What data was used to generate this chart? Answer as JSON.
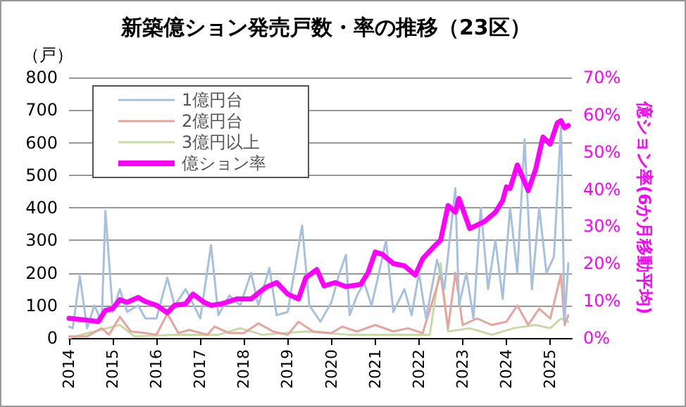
{
  "chart_data": {
    "type": "line",
    "title": "新築億ション発売戸数・率の推移（23区）",
    "ylabel": "（戸）",
    "y2label": "億ション率(6か月移動平均)",
    "xlim": [
      "2014-01",
      "2025-07"
    ],
    "xticks": [
      "2014",
      "2015",
      "2016",
      "2017",
      "2018",
      "2019",
      "2020",
      "2021",
      "2022",
      "2023",
      "2024",
      "2025"
    ],
    "ylim": [
      0,
      800
    ],
    "yticks": [
      0,
      100,
      200,
      300,
      400,
      500,
      600,
      700,
      800
    ],
    "y2lim": [
      0,
      70
    ],
    "y2ticks": [
      {
        "value": 0,
        "label": "0%"
      },
      {
        "value": 10,
        "label": "10%"
      },
      {
        "value": 20,
        "label": "20%"
      },
      {
        "value": 30,
        "label": "30%"
      },
      {
        "value": 40,
        "label": "40%"
      },
      {
        "value": 50,
        "label": "50%"
      },
      {
        "value": 60,
        "label": "60%"
      },
      {
        "value": 70,
        "label": "70%"
      }
    ],
    "grid": "y",
    "legend": "top left",
    "marker": "none",
    "line_style": "solid",
    "series": [
      {
        "name": "1億円台",
        "color": "#a7c0de",
        "x": [
          "2014-01",
          "2014-02",
          "2014-04",
          "2014-06",
          "2014-08",
          "2014-10",
          "2014-11",
          "2015-01",
          "2015-03",
          "2015-05",
          "2015-08",
          "2015-10",
          "2016-01",
          "2016-04",
          "2016-06",
          "2016-09",
          "2017-01",
          "2017-04",
          "2017-06",
          "2017-09",
          "2017-12",
          "2018-03",
          "2018-05",
          "2018-08",
          "2018-10",
          "2019-01",
          "2019-05",
          "2019-07",
          "2019-10",
          "2020-01",
          "2020-03",
          "2020-05",
          "2020-06",
          "2020-08",
          "2020-10",
          "2020-12",
          "2021-02",
          "2021-04",
          "2021-06",
          "2021-09",
          "2021-11",
          "2022-01",
          "2022-03",
          "2022-06",
          "2022-08",
          "2022-11",
          "2022-12",
          "2023-02",
          "2023-04",
          "2023-06",
          "2023-08",
          "2023-10",
          "2023-12",
          "2024-02",
          "2024-04",
          "2024-06",
          "2024-08",
          "2024-10",
          "2024-12",
          "2025-02",
          "2025-04",
          "2025-05",
          "2025-06"
        ],
        "values": [
          35,
          30,
          190,
          30,
          100,
          50,
          390,
          80,
          150,
          80,
          100,
          60,
          60,
          185,
          100,
          150,
          60,
          285,
          70,
          130,
          100,
          200,
          100,
          215,
          70,
          80,
          345,
          100,
          50,
          110,
          190,
          255,
          70,
          130,
          170,
          100,
          200,
          300,
          80,
          150,
          70,
          200,
          60,
          240,
          150,
          460,
          100,
          200,
          60,
          400,
          150,
          300,
          120,
          400,
          200,
          610,
          150,
          400,
          200,
          250,
          650,
          50,
          230
        ]
      },
      {
        "name": "2億円台",
        "color": "#e6a49c",
        "x": [
          "2014-01",
          "2014-06",
          "2014-10",
          "2014-12",
          "2015-03",
          "2015-06",
          "2015-10",
          "2016-01",
          "2016-04",
          "2016-07",
          "2016-10",
          "2017-03",
          "2017-05",
          "2017-09",
          "2018-01",
          "2018-05",
          "2018-09",
          "2019-01",
          "2019-04",
          "2019-08",
          "2020-01",
          "2020-04",
          "2020-08",
          "2021-01",
          "2021-06",
          "2021-10",
          "2022-02",
          "2022-07",
          "2022-09",
          "2022-11",
          "2023-01",
          "2023-05",
          "2023-09",
          "2024-01",
          "2024-04",
          "2024-07",
          "2024-10",
          "2025-01",
          "2025-04",
          "2025-05",
          "2025-06"
        ],
        "values": [
          5,
          5,
          30,
          10,
          65,
          20,
          15,
          10,
          75,
          15,
          25,
          10,
          35,
          15,
          15,
          45,
          20,
          10,
          50,
          20,
          15,
          35,
          20,
          40,
          20,
          30,
          15,
          195,
          30,
          200,
          40,
          60,
          40,
          50,
          100,
          40,
          90,
          60,
          195,
          40,
          70
        ]
      },
      {
        "name": "3億円以上",
        "color": "#c8d9a5",
        "x": [
          "2014-01",
          "2015-03",
          "2015-07",
          "2016-06",
          "2017-06",
          "2017-12",
          "2018-06",
          "2019-06",
          "2020-06",
          "2021-06",
          "2022-04",
          "2022-07",
          "2022-09",
          "2023-03",
          "2023-09",
          "2024-03",
          "2024-09",
          "2025-01",
          "2025-04",
          "2025-06"
        ],
        "values": [
          0,
          40,
          5,
          10,
          10,
          30,
          10,
          20,
          10,
          10,
          10,
          230,
          20,
          30,
          10,
          30,
          40,
          30,
          60,
          50
        ]
      },
      {
        "name": "億ション率",
        "color": "#ff00ff",
        "axis": "y2",
        "x": [
          "2014-01",
          "2014-06",
          "2014-09",
          "2014-11",
          "2015-01",
          "2015-03",
          "2015-05",
          "2015-08",
          "2015-10",
          "2016-01",
          "2016-04",
          "2016-06",
          "2016-09",
          "2016-11",
          "2017-02",
          "2017-04",
          "2017-07",
          "2017-11",
          "2018-03",
          "2018-07",
          "2018-10",
          "2019-01",
          "2019-04",
          "2019-06",
          "2019-09",
          "2019-11",
          "2020-02",
          "2020-05",
          "2020-09",
          "2020-11",
          "2021-01",
          "2021-03",
          "2021-06",
          "2021-09",
          "2021-12",
          "2022-02",
          "2022-05",
          "2022-07",
          "2022-09",
          "2022-11",
          "2022-12",
          "2023-03",
          "2023-07",
          "2023-10",
          "2023-12",
          "2024-01",
          "2024-02",
          "2024-04",
          "2024-07",
          "2024-09",
          "2024-11",
          "2025-01",
          "2025-03",
          "2025-04",
          "2025-05",
          "2025-06"
        ],
        "values": [
          5.3,
          4.8,
          4.4,
          7.4,
          7.9,
          10.3,
          9.6,
          10.9,
          9.8,
          8.8,
          6.8,
          8.8,
          9.2,
          11.8,
          9.6,
          8.8,
          9.2,
          10.5,
          10.5,
          13.6,
          14.9,
          11.8,
          10.5,
          16.2,
          18.4,
          14,
          14.9,
          13.8,
          14.4,
          17.5,
          23.1,
          22.5,
          20,
          19.4,
          16.9,
          21.3,
          24.4,
          26.3,
          35.6,
          33.8,
          37.5,
          29.4,
          31.3,
          33.8,
          36.9,
          40.6,
          40.2,
          46.5,
          39.6,
          45.3,
          54,
          52.1,
          57.8,
          58.4,
          56.5,
          57.1
        ]
      }
    ]
  }
}
